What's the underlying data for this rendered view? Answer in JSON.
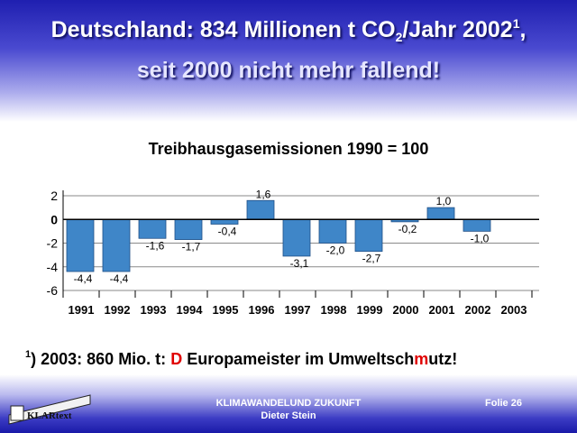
{
  "header": {
    "title_line1_a": "Deutschland: 834 Millionen t CO",
    "title_line1_sub": "2",
    "title_line1_b": "/Jahr 2002",
    "title_line1_sup": "1",
    "title_line1_c": ",",
    "title_line2": "seit 2000 nicht mehr fallend!"
  },
  "chart_data": {
    "type": "bar",
    "title": "Treibhausgasemissionen 1990 = 100",
    "categories": [
      "1991",
      "1992",
      "1993",
      "1994",
      "1995",
      "1996",
      "1997",
      "1998",
      "1999",
      "2000",
      "2001",
      "2002",
      "2003"
    ],
    "values": [
      -4.4,
      -4.4,
      -1.6,
      -1.7,
      -0.4,
      1.6,
      -3.1,
      -2.0,
      -2.7,
      -0.2,
      1.0,
      -1.0,
      null
    ],
    "labels": [
      "-4,4",
      "-4,4",
      "-1,6",
      "-1,7",
      "-0,4",
      "1,6",
      "-3,1",
      "-2,0",
      "-2,7",
      "-0,2",
      "1,0",
      "-1,0",
      ""
    ],
    "yticks": [
      "2",
      "0",
      "-2",
      "-4",
      "-6"
    ],
    "ytick_values": [
      2,
      0,
      -2,
      -4,
      -6
    ],
    "ylim": [
      -6,
      2
    ],
    "bar_color": "#3f86c8",
    "grid": true
  },
  "footnote": {
    "sup": "1",
    "text_a": ") 2003: 860 Mio. t: ",
    "red1": "D",
    "text_b": " Europameister im Umweltsch",
    "red2": "m",
    "text_c": "utz!"
  },
  "footer": {
    "line1": "KLIMAWANDELUND ZUKUNFT",
    "line2": "Dieter Stein",
    "slide": "Folie 26",
    "logo_text": "KLARtext"
  }
}
